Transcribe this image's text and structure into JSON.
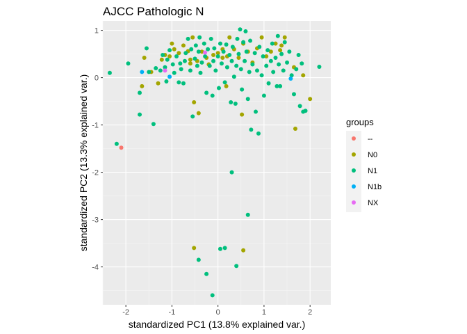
{
  "chart_data": {
    "type": "scatter",
    "title": "AJCC Pathologic N",
    "xlabel": "standardized PC1 (13.8% explained var.)",
    "ylabel": "standardized PC2 (13.3% explained var.)",
    "xlim": [
      -2.5,
      2.45
    ],
    "ylim": [
      -4.8,
      1.2
    ],
    "x_ticks": [
      -2,
      -1,
      0,
      1,
      2
    ],
    "y_ticks": [
      -4,
      -3,
      -2,
      -1,
      0,
      1
    ],
    "grid": true,
    "legend": {
      "title": "groups",
      "position": "right"
    },
    "series": [
      {
        "name": "--",
        "color": "#F8766D",
        "points": [
          [
            -2.1,
            -1.48
          ]
        ]
      },
      {
        "name": "N0",
        "color": "#A3A500",
        "points": [
          [
            -1.65,
            -0.18
          ],
          [
            -1.6,
            0.42
          ],
          [
            -1.45,
            0.12
          ],
          [
            -1.3,
            -0.12
          ],
          [
            -1.22,
            0.38
          ],
          [
            -1.15,
            0.48
          ],
          [
            -1.05,
            0.45
          ],
          [
            -1.0,
            0.72
          ],
          [
            -0.95,
            0.6
          ],
          [
            -0.85,
            0.52
          ],
          [
            -0.75,
            0.68
          ],
          [
            -0.65,
            0.56
          ],
          [
            -0.6,
            0.3
          ],
          [
            -0.55,
            0.85
          ],
          [
            -0.52,
            -0.52
          ],
          [
            -0.45,
            0.35
          ],
          [
            -0.42,
            -0.75
          ],
          [
            -0.35,
            0.55
          ],
          [
            -0.25,
            0.42
          ],
          [
            -0.2,
            0.28
          ],
          [
            -0.1,
            0.48
          ],
          [
            0.0,
            0.52
          ],
          [
            0.1,
            0.6
          ],
          [
            0.2,
            0.45
          ],
          [
            0.25,
            0.85
          ],
          [
            0.35,
            0.6
          ],
          [
            0.45,
            0.42
          ],
          [
            0.55,
            0.72
          ],
          [
            0.65,
            0.55
          ],
          [
            0.75,
            0.32
          ],
          [
            0.85,
            0.62
          ],
          [
            0.95,
            0.85
          ],
          [
            1.05,
            0.45
          ],
          [
            1.15,
            0.55
          ],
          [
            1.25,
            0.72
          ],
          [
            1.38,
            0.68
          ],
          [
            1.45,
            0.85
          ],
          [
            1.35,
            0.58
          ],
          [
            1.65,
            0.22
          ],
          [
            1.68,
            -1.08
          ],
          [
            1.85,
            0.05
          ],
          [
            2.0,
            -0.45
          ],
          [
            0.18,
            -0.18
          ],
          [
            0.52,
            -0.78
          ],
          [
            -0.52,
            -3.6
          ],
          [
            0.55,
            -3.65
          ],
          [
            -0.6,
            0.38
          ],
          [
            0.1,
            0.42
          ]
        ]
      },
      {
        "name": "N1",
        "color": "#00BF7D",
        "points": [
          [
            -2.35,
            0.1
          ],
          [
            -2.2,
            -1.4
          ],
          [
            -1.95,
            0.3
          ],
          [
            -1.7,
            -0.32
          ],
          [
            -1.7,
            -0.78
          ],
          [
            -1.55,
            0.62
          ],
          [
            -1.5,
            0.12
          ],
          [
            -1.4,
            -0.98
          ],
          [
            -1.35,
            0.2
          ],
          [
            -1.25,
            0.15
          ],
          [
            -1.2,
            0.48
          ],
          [
            -1.15,
            0.22
          ],
          [
            -1.12,
            -0.08
          ],
          [
            -1.1,
            0.38
          ],
          [
            -1.05,
            0.58
          ],
          [
            -0.98,
            0.28
          ],
          [
            -0.95,
            0.1
          ],
          [
            -0.9,
            0.45
          ],
          [
            -0.85,
            -0.1
          ],
          [
            -0.82,
            0.3
          ],
          [
            -0.8,
            0.18
          ],
          [
            -0.75,
            -0.12
          ],
          [
            -0.72,
            0.35
          ],
          [
            -0.7,
            0.52
          ],
          [
            -0.65,
            0.82
          ],
          [
            -0.6,
            0.15
          ],
          [
            -0.58,
            0.6
          ],
          [
            -0.55,
            -0.82
          ],
          [
            -0.5,
            0.4
          ],
          [
            -0.48,
            0.68
          ],
          [
            -0.45,
            0.25
          ],
          [
            -0.42,
            0.55
          ],
          [
            -0.4,
            0.85
          ],
          [
            -0.38,
            0.1
          ],
          [
            -0.35,
            0.32
          ],
          [
            -0.3,
            0.72
          ],
          [
            -0.28,
            0.45
          ],
          [
            -0.25,
            -0.32
          ],
          [
            -0.22,
            0.6
          ],
          [
            -0.18,
            0.25
          ],
          [
            -0.15,
            0.82
          ],
          [
            -0.12,
            -0.38
          ],
          [
            -0.1,
            0.35
          ],
          [
            -0.08,
            0.62
          ],
          [
            -0.05,
            0.15
          ],
          [
            0.0,
            0.45
          ],
          [
            0.02,
            -0.22
          ],
          [
            0.05,
            0.72
          ],
          [
            0.08,
            0.3
          ],
          [
            0.12,
            0.55
          ],
          [
            0.15,
            -0.1
          ],
          [
            0.18,
            0.7
          ],
          [
            0.2,
            0.22
          ],
          [
            0.25,
            0.48
          ],
          [
            0.28,
            -0.52
          ],
          [
            0.3,
            0.35
          ],
          [
            0.32,
            0.65
          ],
          [
            0.35,
            0.02
          ],
          [
            0.38,
            -0.55
          ],
          [
            0.4,
            0.25
          ],
          [
            0.42,
            0.82
          ],
          [
            0.45,
            0.5
          ],
          [
            0.48,
            1.02
          ],
          [
            0.5,
            0.18
          ],
          [
            0.52,
            -0.25
          ],
          [
            0.55,
            0.75
          ],
          [
            0.58,
            0.35
          ],
          [
            0.6,
            0.98
          ],
          [
            0.62,
            0.55
          ],
          [
            0.65,
            -0.45
          ],
          [
            0.68,
            0.12
          ],
          [
            0.7,
            0.78
          ],
          [
            0.72,
            -1.1
          ],
          [
            0.75,
            0.28
          ],
          [
            0.8,
            0.52
          ],
          [
            0.82,
            -0.72
          ],
          [
            0.85,
            0.15
          ],
          [
            0.88,
            -1.18
          ],
          [
            0.9,
            0.65
          ],
          [
            0.95,
            0.05
          ],
          [
            0.98,
            0.45
          ],
          [
            1.0,
            -0.38
          ],
          [
            1.05,
            0.25
          ],
          [
            1.08,
            0.58
          ],
          [
            1.1,
            -0.12
          ],
          [
            1.15,
            0.35
          ],
          [
            1.18,
            0.72
          ],
          [
            1.2,
            0.12
          ],
          [
            1.25,
            0.42
          ],
          [
            1.28,
            -0.18
          ],
          [
            1.3,
            0.88
          ],
          [
            1.32,
            0.28
          ],
          [
            1.35,
            -0.18
          ],
          [
            1.38,
            0.5
          ],
          [
            1.42,
            0.15
          ],
          [
            1.45,
            0.75
          ],
          [
            1.5,
            0.32
          ],
          [
            1.55,
            0.55
          ],
          [
            1.6,
            0.05
          ],
          [
            1.65,
            -0.35
          ],
          [
            1.7,
            0.18
          ],
          [
            1.75,
            0.48
          ],
          [
            1.78,
            -0.6
          ],
          [
            1.82,
            0.3
          ],
          [
            1.85,
            -0.72
          ],
          [
            1.9,
            -0.7
          ],
          [
            2.2,
            0.23
          ],
          [
            0.3,
            -2.0
          ],
          [
            0.65,
            -2.9
          ],
          [
            0.15,
            -3.6
          ],
          [
            0.05,
            -3.62
          ],
          [
            -0.42,
            -3.85
          ],
          [
            0.4,
            -3.98
          ],
          [
            -0.25,
            -4.15
          ],
          [
            -0.12,
            -4.6
          ]
        ]
      },
      {
        "name": "N1b",
        "color": "#00B0F6",
        "points": [
          [
            -1.65,
            0.12
          ],
          [
            -1.05,
            0.02
          ],
          [
            1.58,
            -0.02
          ]
        ]
      },
      {
        "name": "NX",
        "color": "#E76BF3",
        "points": [
          [
            -1.15,
            0.15
          ],
          [
            -0.28,
            0.53
          ]
        ]
      }
    ]
  }
}
